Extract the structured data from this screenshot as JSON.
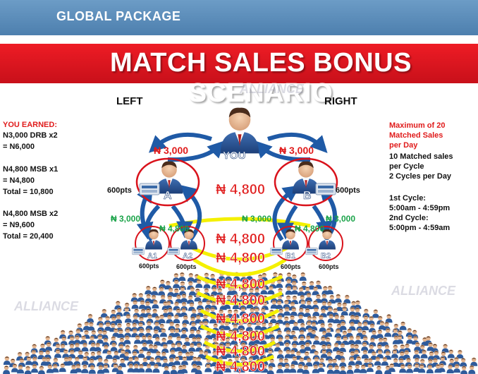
{
  "header": {
    "package_label": "GLOBAL PACKAGE",
    "title": "MATCH SALES BONUS SCENARIO"
  },
  "sides": {
    "left": "LEFT",
    "right": "RIGHT"
  },
  "watermark": "ALLIANCE",
  "left_panel": {
    "heading": "YOU EARNED:",
    "line1": "N3,000 DRB x2",
    "line2": "= N6,000",
    "line3": "N4,800 MSB x1",
    "line4": "= N4,800",
    "line5": "Total = 10,800",
    "line6": "N4,800 MSB x2",
    "line7": "= N9,600",
    "line8": "Total = 20,400"
  },
  "right_panel": {
    "l1": "Maximum of 20",
    "l2": "Matched Sales",
    "l3": "per Day",
    "l4": "10 Matched sales",
    "l5": "per Cycle",
    "l6": "2 Cycles per Day",
    "l7": "1st Cycle:",
    "l8": "5:00am - 4:59pm",
    "l9": "2nd Cycle:",
    "l10": "5:00pm - 4:59am"
  },
  "nodes": {
    "you": "YOU",
    "a": "A",
    "b": "B",
    "a1": "A1",
    "a2": "A2",
    "b1": "B1",
    "b2": "B2"
  },
  "points": {
    "a": "600pts",
    "b": "600pts",
    "a1": "600pts",
    "a2": "600pts",
    "b1": "600pts",
    "b2": "600pts"
  },
  "amounts": {
    "red_left": "₦ 3,000",
    "red_right": "₦ 3,000",
    "green_a_left": "₦ 3,000",
    "green_a_right": "₦ 4,800",
    "green_b_left": "₦ 3,000",
    "green_b_right": "₦ 4,800",
    "green_b_far": "₦ 3,000",
    "matches": [
      "₦ 4,800",
      "₦ 4,800",
      "₦ 4,800",
      "₦ 4,800",
      "₦ 4,800",
      "₦ 4,800",
      "₦ 4,800",
      "₦ 4,800",
      "₦ 4,800"
    ]
  },
  "colors": {
    "topbar": "#5a8bba",
    "redbar": "#e3141d",
    "arrow_blue": "#1f5aa6",
    "arc_yellow": "#f4f000",
    "circle_red": "#d9121b",
    "amount_red": "#e01b1b",
    "amount_green": "#1aa349"
  }
}
